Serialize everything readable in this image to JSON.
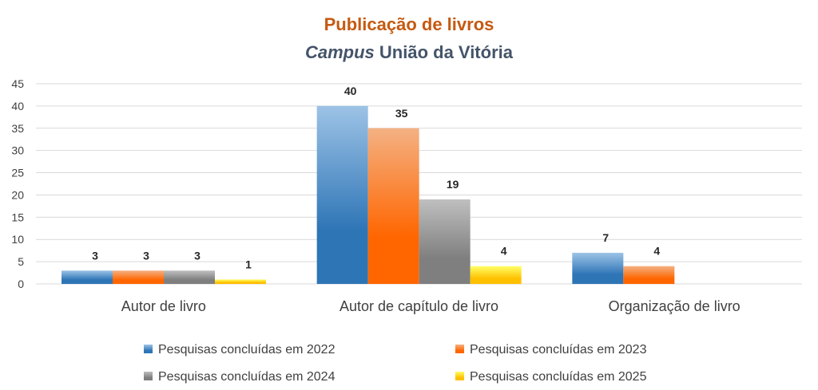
{
  "chart_data": {
    "type": "bar",
    "title": "Publicação de livros",
    "subtitle_italic": "Campus",
    "subtitle_rest": " União da Vitória",
    "categories": [
      "Autor de livro",
      "Autor de capítulo de livro",
      "Organização de livro"
    ],
    "series": [
      {
        "name": "Pesquisas concluídas em 2022",
        "values": [
          3,
          40,
          7
        ],
        "color": "#2e75b6",
        "color_light": "#9dc3e6"
      },
      {
        "name": "Pesquisas concluídas em 2023",
        "values": [
          3,
          35,
          4
        ],
        "color": "#ff6600",
        "color_light": "#f4b183"
      },
      {
        "name": "Pesquisas concluídas em 2024",
        "values": [
          3,
          19,
          null
        ],
        "color": "#7f7f7f",
        "color_light": "#bfbfbf"
      },
      {
        "name": "Pesquisas concluídas em 2025",
        "values": [
          1,
          4,
          null
        ],
        "color": "#ffc000",
        "color_light": "#ffff66"
      }
    ],
    "ylim": [
      0,
      45
    ],
    "yticks": [
      0,
      5,
      10,
      15,
      20,
      25,
      30,
      35,
      40,
      45
    ],
    "grid": true,
    "legend_position": "bottom",
    "title_color": "#c55a11",
    "subtitle_color": "#44546a"
  }
}
